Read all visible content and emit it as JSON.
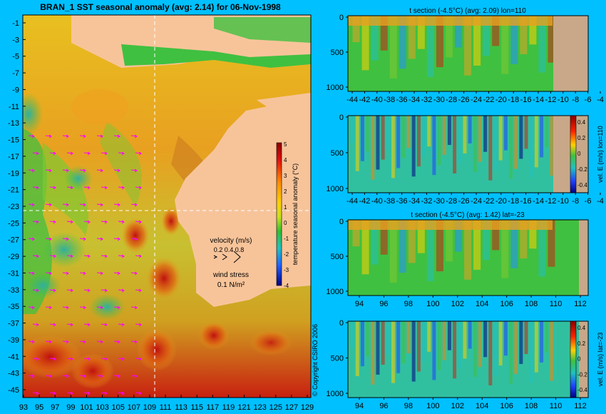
{
  "main": {
    "title": "BRAN_1  SST seasonal anomaly (avg: 2.14) for 06-Nov-1998",
    "lat_ticks": [
      "-1",
      "-3",
      "-5",
      "-7",
      "-9",
      "-11",
      "-13",
      "-15",
      "-17",
      "-19",
      "-21",
      "-23",
      "-25",
      "-27",
      "-29",
      "-31",
      "-33",
      "-35",
      "-37",
      "-39",
      "-41",
      "-43",
      "-45"
    ],
    "lon_ticks": [
      "93",
      "95",
      "97",
      "99",
      "101",
      "103",
      "105",
      "107",
      "109",
      "111",
      "113",
      "115",
      "117",
      "119",
      "121",
      "123",
      "125",
      "127",
      "129"
    ],
    "colorbar_ticks": [
      "5",
      "4",
      "3",
      "2",
      "1",
      "0",
      "-1",
      "-2",
      "-3",
      "-4"
    ],
    "colorbar_label": "temperature seasonal anomaly (°C)",
    "velocity_label": "velocity (m/s)",
    "velocity_scale": "0.2 0.4 0.8",
    "wind_label": "wind stress",
    "wind_scale": "0.1 N/m²"
  },
  "panels": [
    {
      "title": "t section (-4.5°C) (avg: 2.09) lon=110",
      "cb_label": ""
    },
    {
      "title": "",
      "cb_label": "vel. E (m/s) lon=110"
    },
    {
      "title": "t section (-4.5°C) (avg: 1.42) lat=-23",
      "cb_label": ""
    },
    {
      "title": "",
      "cb_label": "vel. E (m/s) lat=-23"
    }
  ],
  "depth_ticks": [
    "0",
    "500",
    "1000"
  ],
  "lat_section_ticks": [
    "-44",
    "-42",
    "-40",
    "-38",
    "-36",
    "-34",
    "-32",
    "-30",
    "-28",
    "-26",
    "-24",
    "-22",
    "-20",
    "-18",
    "-16",
    "-14",
    "-12",
    "-10",
    "-8",
    "-6",
    "-4"
  ],
  "lon_section_ticks": [
    "94",
    "96",
    "98",
    "100",
    "102",
    "104",
    "106",
    "108",
    "110",
    "112"
  ],
  "vel_cb_ticks": [
    "0.4",
    "0.2",
    "0",
    "-0.2",
    "-0.4"
  ],
  "copyright": "© Copyright CSIRO 2006",
  "colors": {
    "background": "#00c0ff",
    "land": "#f7c49a",
    "section_land": "#c8a888",
    "vector": "#ff00ff"
  }
}
